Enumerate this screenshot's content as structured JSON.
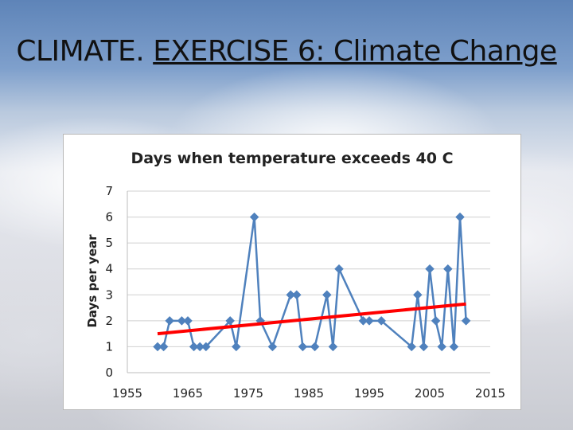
{
  "slide": {
    "title_prefix": "CLIMATE. ",
    "title_underlined": "EXERCISE 6: Climate Change"
  },
  "chart_data": {
    "type": "line",
    "title": "Days when temperature exceeds 40 C",
    "xlabel": "",
    "ylabel": "Days per year",
    "xlim": [
      1955,
      2015
    ],
    "ylim": [
      0,
      7
    ],
    "xticks": [
      1955,
      1965,
      1975,
      1985,
      1995,
      2005,
      2015
    ],
    "yticks": [
      0,
      1,
      2,
      3,
      4,
      5,
      6,
      7
    ],
    "grid": "horizontal",
    "legend": "none",
    "series": [
      {
        "color": "#4f81bd",
        "marker": "diamond",
        "x": [
          1960,
          1961,
          1962,
          1964,
          1965,
          1966,
          1967,
          1968,
          1972,
          1973,
          1976,
          1977,
          1979,
          1982,
          1983,
          1984,
          1986,
          1988,
          1989,
          1990,
          1994,
          1995,
          1997,
          2002,
          2003,
          2004,
          2005,
          2006,
          2007,
          2008,
          2009,
          2010,
          2011
        ],
        "y": [
          1,
          1,
          2,
          2,
          2,
          1,
          1,
          1,
          2,
          1,
          6,
          2,
          1,
          3,
          3,
          1,
          1,
          3,
          1,
          4,
          2,
          2,
          2,
          1,
          3,
          1,
          4,
          2,
          1,
          4,
          1,
          6,
          2
        ]
      },
      {
        "color": "#ff0000",
        "marker": "none",
        "trend": "linear",
        "x": [
          1960,
          2011
        ],
        "y": [
          1.5,
          2.65
        ]
      }
    ]
  }
}
